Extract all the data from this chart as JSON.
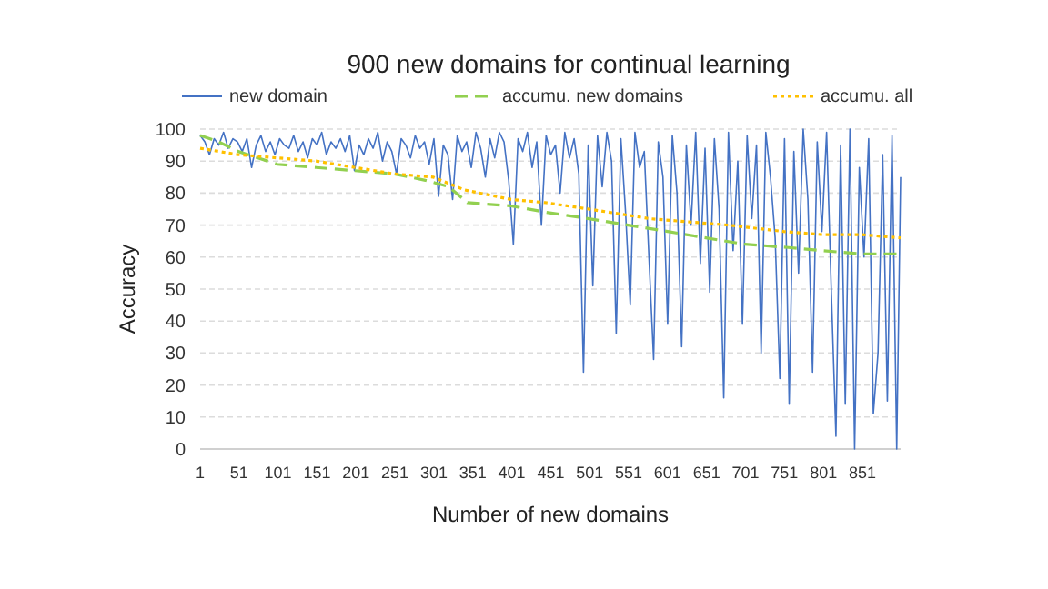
{
  "chart_data": {
    "type": "line",
    "title": "900 new domains for continual learning",
    "xlabel": "Number of new domains",
    "ylabel": "Accuracy",
    "xlim": [
      1,
      900
    ],
    "xticks": [
      1,
      51,
      101,
      151,
      201,
      251,
      301,
      351,
      401,
      451,
      501,
      551,
      601,
      651,
      701,
      751,
      801,
      851
    ],
    "ylim": [
      0,
      100
    ],
    "yticks": [
      0,
      10,
      20,
      30,
      40,
      50,
      60,
      70,
      80,
      90,
      100
    ],
    "grid": "y",
    "legend": "top",
    "series": [
      {
        "name": "new domain",
        "color": "#4472c4",
        "line_style": "solid",
        "x": [
          1,
          7,
          13,
          19,
          25,
          31,
          37,
          43,
          49,
          55,
          61,
          67,
          73,
          79,
          85,
          91,
          97,
          103,
          109,
          115,
          121,
          127,
          133,
          139,
          145,
          151,
          157,
          163,
          169,
          175,
          181,
          187,
          193,
          199,
          205,
          211,
          217,
          223,
          229,
          235,
          241,
          247,
          253,
          259,
          265,
          271,
          277,
          283,
          289,
          295,
          301,
          307,
          313,
          319,
          325,
          331,
          337,
          343,
          349,
          355,
          361,
          367,
          373,
          379,
          385,
          391,
          397,
          403,
          409,
          415,
          421,
          427,
          433,
          439,
          445,
          451,
          457,
          463,
          469,
          475,
          481,
          487,
          493,
          499,
          505,
          511,
          517,
          523,
          529,
          535,
          541,
          547,
          553,
          559,
          565,
          571,
          577,
          583,
          589,
          595,
          601,
          607,
          613,
          619,
          625,
          631,
          637,
          643,
          649,
          655,
          661,
          667,
          673,
          679,
          685,
          691,
          697,
          703,
          709,
          715,
          721,
          727,
          733,
          739,
          745,
          751,
          757,
          763,
          769,
          775,
          781,
          787,
          793,
          799,
          805,
          811,
          817,
          823,
          829,
          835,
          841,
          847,
          853,
          859,
          865,
          871,
          877,
          883,
          889,
          895,
          900
        ],
        "values": [
          98,
          96,
          92,
          97,
          95,
          99,
          94,
          97,
          96,
          93,
          97,
          88,
          95,
          98,
          93,
          96,
          92,
          97,
          95,
          94,
          98,
          93,
          96,
          91,
          97,
          95,
          99,
          92,
          96,
          94,
          97,
          93,
          98,
          87,
          95,
          92,
          97,
          94,
          99,
          90,
          96,
          93,
          86,
          97,
          95,
          91,
          98,
          94,
          96,
          89,
          97,
          79,
          95,
          92,
          78,
          98,
          93,
          96,
          88,
          99,
          94,
          85,
          97,
          91,
          99,
          96,
          84,
          64,
          97,
          93,
          99,
          88,
          96,
          70,
          98,
          92,
          95,
          80,
          99,
          91,
          97,
          86,
          24,
          95,
          51,
          98,
          82,
          99,
          90,
          36,
          97,
          74,
          45,
          99,
          88,
          93,
          60,
          28,
          96,
          85,
          39,
          98,
          80,
          32,
          95,
          70,
          99,
          58,
          94,
          49,
          97,
          75,
          16,
          99,
          62,
          90,
          39,
          98,
          72,
          95,
          30,
          99,
          85,
          66,
          22,
          97,
          14,
          93,
          55,
          100,
          78,
          24,
          96,
          68,
          99,
          50,
          4,
          95,
          14,
          100,
          0,
          88,
          60,
          97,
          11,
          30,
          92,
          15,
          98,
          0,
          85
        ]
      },
      {
        "name": "accumu. new domains",
        "color": "#92d050",
        "line_style": "dashed",
        "x": [
          1,
          25,
          50,
          100,
          150,
          200,
          250,
          290,
          320,
          344,
          400,
          445,
          500,
          550,
          601,
          650,
          700,
          756,
          800,
          850,
          900
        ],
        "values": [
          98,
          96,
          93,
          89,
          88,
          87,
          86,
          84,
          82,
          77,
          76,
          74,
          72,
          70,
          68,
          66,
          64,
          63,
          62,
          61,
          61
        ]
      },
      {
        "name": "accumu. all",
        "color": "#ffc000",
        "line_style": "dotted",
        "x": [
          1,
          50,
          100,
          150,
          200,
          250,
          300,
          340,
          400,
          445,
          500,
          578,
          679,
          750,
          800,
          850,
          900
        ],
        "values": [
          94,
          92,
          91,
          90,
          88,
          86,
          85,
          81,
          78,
          77,
          75,
          72,
          70,
          68,
          67,
          67,
          66
        ]
      }
    ]
  }
}
